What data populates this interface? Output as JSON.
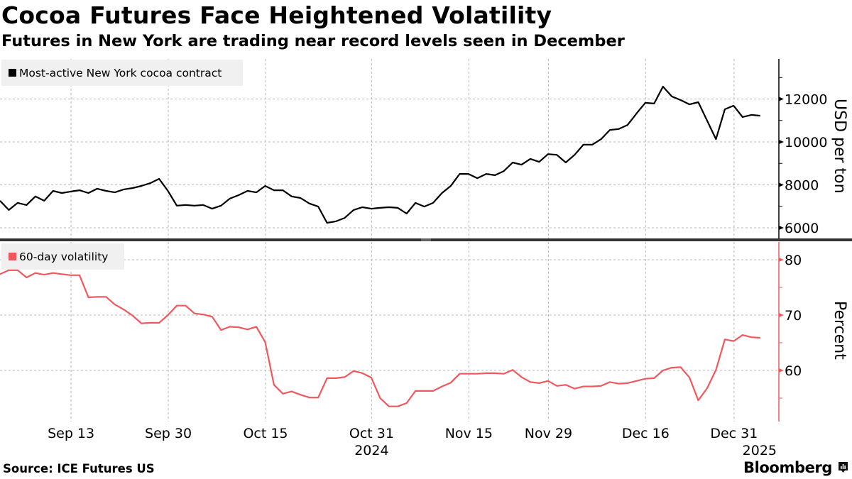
{
  "header": {
    "title": "Cocoa Futures Face Heightened Volatility",
    "subtitle": "Futures in New York are trading near record levels seen in December"
  },
  "footer": {
    "source": "Source: ICE Futures US",
    "brand": "Bloomberg",
    "brand_icon": "bloomberg-chart-icon"
  },
  "colors": {
    "price_line": "#000000",
    "volatility_line": "#f0585e",
    "legend_bg": "#f0f0f0",
    "grid": "#b8b8b8",
    "divider": "#333333"
  },
  "chart_data": [
    {
      "type": "line",
      "panel": "top",
      "legend": "Most-active New York cocoa contract",
      "legend_placement": "top-left",
      "ylabel": "USD per ton",
      "ylim": [
        5300,
        13800
      ],
      "yticks": [
        6000,
        8000,
        10000,
        12000
      ],
      "grid": true,
      "x_tick_labels": [
        {
          "label": "Sep 13",
          "index": 8
        },
        {
          "label": "Sep 30",
          "index": 19
        },
        {
          "label": "Oct 15",
          "index": 30
        },
        {
          "label": "Oct 31",
          "sublabel": "2024",
          "index": 42
        },
        {
          "label": "Nov 15",
          "index": 53
        },
        {
          "label": "Nov 29",
          "index": 62
        },
        {
          "label": "Dec 16",
          "index": 73
        },
        {
          "label": "Dec 31",
          "sublabel": "2025",
          "index": 83
        }
      ],
      "series": [
        {
          "name": "Most-active New York cocoa contract",
          "values": [
            7260,
            6830,
            7160,
            7060,
            7460,
            7260,
            7720,
            7620,
            7690,
            7750,
            7620,
            7820,
            7720,
            7650,
            7790,
            7850,
            7950,
            8080,
            8280,
            7720,
            7030,
            7060,
            7030,
            7060,
            6890,
            7030,
            7360,
            7520,
            7720,
            7650,
            7950,
            7750,
            7750,
            7460,
            7390,
            7130,
            6990,
            6230,
            6300,
            6460,
            6830,
            6960,
            6890,
            6930,
            6960,
            6930,
            6660,
            7160,
            6990,
            7160,
            7620,
            7950,
            8510,
            8510,
            8310,
            8510,
            8450,
            8640,
            9040,
            8940,
            9210,
            9070,
            9430,
            9400,
            9040,
            9400,
            9870,
            9870,
            10130,
            10560,
            10600,
            10790,
            11320,
            11820,
            11790,
            12580,
            12120,
            11950,
            11750,
            11850,
            10990,
            10130,
            11520,
            11690,
            11160,
            11260,
            11220
          ]
        }
      ]
    },
    {
      "type": "line",
      "panel": "bottom",
      "legend": "60-day volatility",
      "legend_placement": "top-left",
      "ylabel": "Percent",
      "ylim": [
        52.5,
        83
      ],
      "yticks": [
        60,
        70,
        80
      ],
      "grid": true,
      "series": [
        {
          "name": "60-day volatility",
          "values": [
            77.4,
            78.1,
            78.1,
            76.8,
            77.6,
            77.3,
            77.6,
            77.4,
            77.2,
            77.2,
            73.2,
            73.3,
            73.3,
            71.9,
            71.0,
            69.9,
            68.5,
            68.6,
            68.6,
            70.0,
            71.7,
            71.7,
            70.3,
            70.1,
            69.7,
            67.3,
            67.9,
            67.8,
            67.4,
            67.9,
            65.1,
            57.4,
            55.8,
            56.2,
            55.6,
            55.1,
            55.1,
            58.6,
            58.6,
            58.8,
            59.9,
            59.5,
            58.7,
            55.0,
            53.5,
            53.5,
            54.1,
            56.3,
            56.3,
            56.3,
            57.1,
            57.8,
            59.4,
            59.4,
            59.4,
            59.5,
            59.5,
            59.4,
            60.1,
            58.8,
            57.9,
            57.7,
            58.1,
            57.2,
            57.4,
            56.7,
            57.1,
            57.1,
            57.2,
            57.9,
            57.6,
            57.7,
            58.1,
            58.5,
            58.6,
            60.0,
            60.5,
            60.6,
            58.7,
            54.6,
            56.8,
            60.1,
            65.6,
            65.3,
            66.4,
            66.0,
            65.9
          ]
        }
      ]
    }
  ]
}
